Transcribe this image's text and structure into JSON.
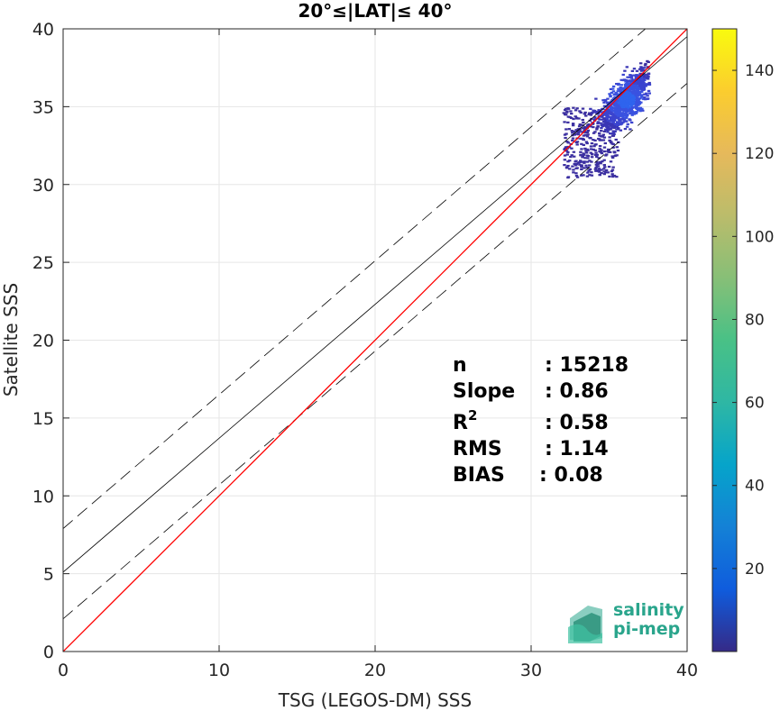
{
  "chart_data": {
    "type": "scatter",
    "title": "20°≤|LAT|≤ 40°",
    "xlabel": "TSG (LEGOS-DM) SSS",
    "ylabel": "Satellite SSS",
    "xlim": [
      0,
      40
    ],
    "ylim": [
      0,
      40
    ],
    "xticks": [
      "0",
      "10",
      "20",
      "30",
      "40"
    ],
    "yticks": [
      "0",
      "5",
      "10",
      "15",
      "20",
      "25",
      "30",
      "35",
      "40"
    ],
    "grid": true,
    "lines": {
      "identity": {
        "intercept": 0,
        "slope": 1,
        "color": "#ff0000"
      },
      "fit": {
        "intercept": 5.1,
        "slope": 0.86,
        "color": "#000000"
      },
      "fit_upper": {
        "intercept": 7.9,
        "slope": 0.86,
        "style": "dashed"
      },
      "fit_lower": {
        "intercept": 2.1,
        "slope": 0.86,
        "style": "dashed"
      }
    },
    "density_cluster": {
      "x_range": [
        28.5,
        37.5
      ],
      "y_range": [
        28,
        39
      ],
      "center": [
        36,
        35.5
      ]
    },
    "colorbar": {
      "min": 0,
      "max": 150,
      "ticks": [
        "20",
        "40",
        "60",
        "80",
        "100",
        "120",
        "140"
      ],
      "colormap": "parula"
    },
    "stats": [
      {
        "label": "n",
        "value": ": 15218"
      },
      {
        "label": "Slope",
        "value": ": 0.86"
      },
      {
        "label": "R",
        "sup": "2",
        "value": ": 0.58"
      },
      {
        "label": "RMS",
        "value": ": 1.14"
      },
      {
        "label": "BIAS",
        "value": ": 0.08"
      }
    ]
  },
  "logo": {
    "line1": "salinity",
    "line2": "pi-mep"
  }
}
